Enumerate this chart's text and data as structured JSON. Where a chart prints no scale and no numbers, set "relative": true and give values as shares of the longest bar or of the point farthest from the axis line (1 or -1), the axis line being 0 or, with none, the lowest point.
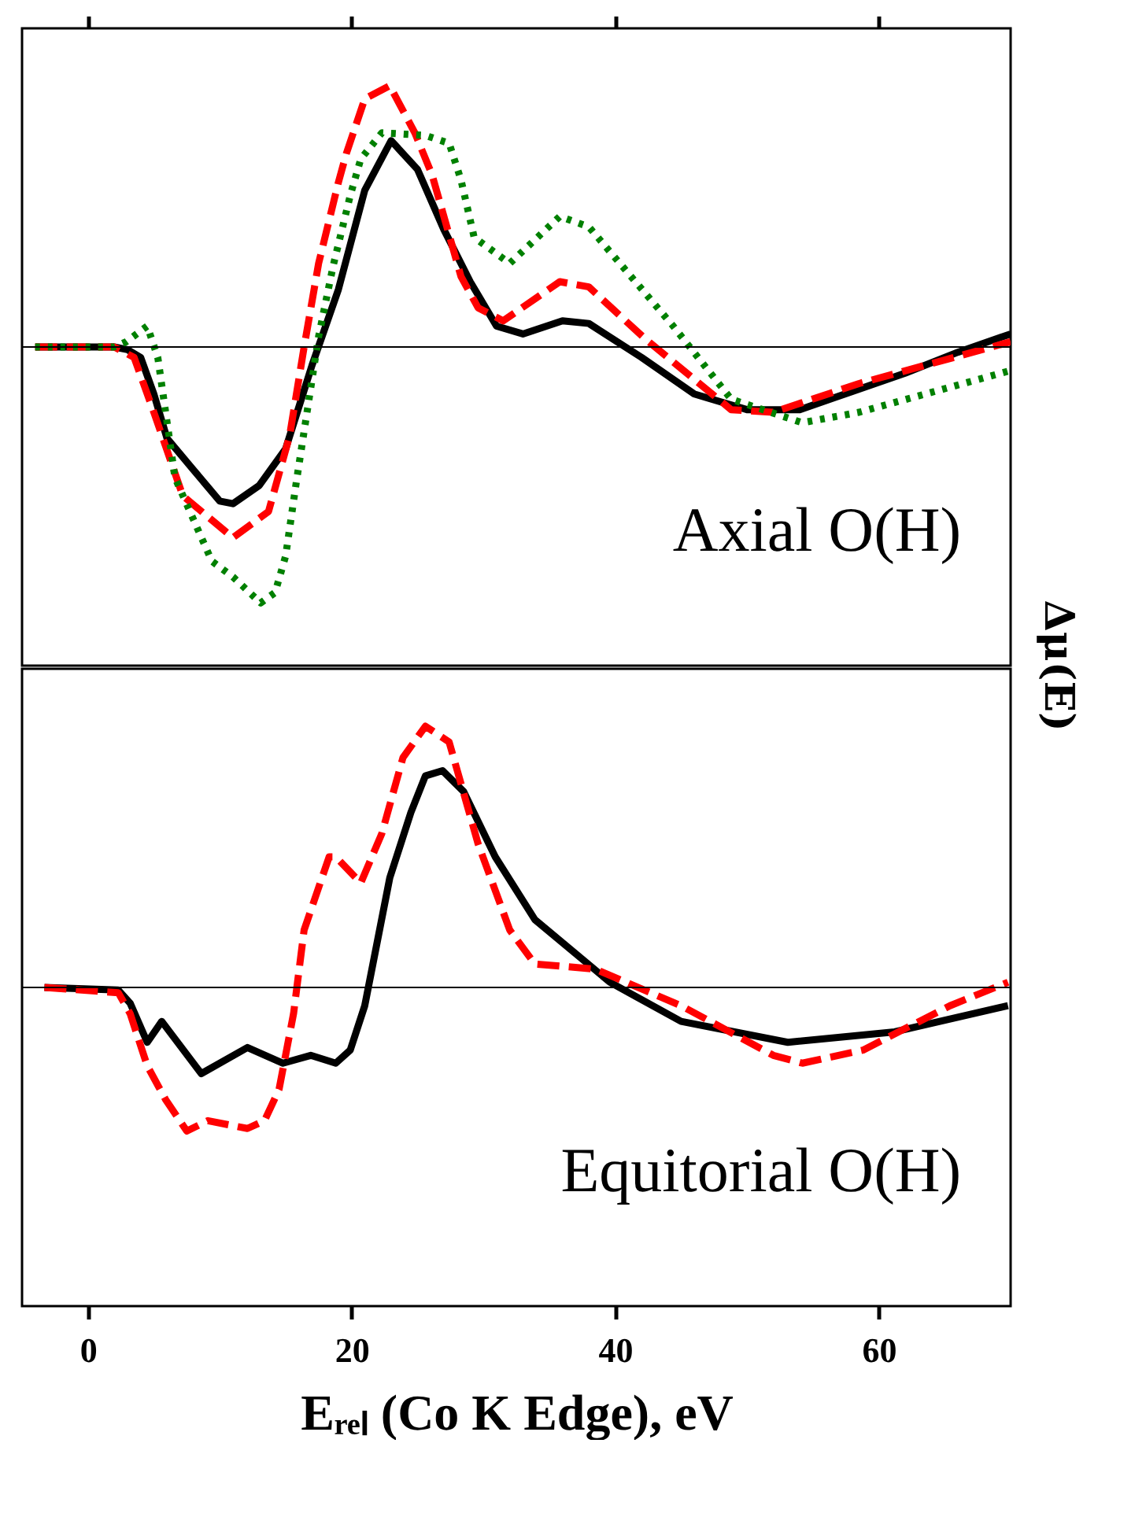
{
  "chart_data": [
    {
      "type": "line",
      "relative": true,
      "ylabel": "Δμ(E)",
      "xlim": [
        -5,
        70
      ],
      "xticks": [
        0,
        20,
        40,
        60
      ],
      "tick_labels": false,
      "annotations": [
        "Axial O(H)"
      ],
      "series": [
        {
          "color": "#000000",
          "line_style": "solid",
          "x": [
            -4,
            2,
            3,
            4,
            5,
            6,
            8,
            10,
            11,
            13,
            15,
            17,
            19,
            21,
            23,
            25,
            27,
            29,
            31,
            33,
            36,
            38,
            42,
            46,
            50,
            54,
            58,
            62,
            66,
            70
          ],
          "values": [
            0,
            0,
            -0.01,
            -0.04,
            -0.18,
            -0.35,
            -0.47,
            -0.59,
            -0.6,
            -0.53,
            -0.39,
            -0.07,
            0.22,
            0.6,
            0.79,
            0.68,
            0.45,
            0.25,
            0.08,
            0.05,
            0.1,
            0.09,
            -0.04,
            -0.18,
            -0.24,
            -0.24,
            -0.17,
            -0.1,
            -0.02,
            0.05
          ]
        },
        {
          "color": "#ff0000",
          "line_style": "dashed",
          "x": [
            -4,
            2,
            3.5,
            5,
            7.2,
            11,
            13.7,
            15.3,
            16.4,
            17.5,
            19,
            19.6,
            21,
            22.9,
            24.8,
            26.1,
            28.3,
            29.6,
            31.5,
            35.8,
            38,
            42.3,
            48.8,
            52,
            58.5,
            70
          ],
          "values": [
            0,
            0,
            -0.04,
            -0.25,
            -0.57,
            -0.73,
            -0.63,
            -0.34,
            0,
            0.32,
            0.63,
            0.74,
            0.95,
            1.0,
            0.82,
            0.66,
            0.27,
            0.15,
            0.1,
            0.25,
            0.23,
            0.03,
            -0.24,
            -0.25,
            -0.14,
            0.02
          ]
        },
        {
          "color": "#008000",
          "line_style": "dotted",
          "x": [
            -4,
            2,
            2.9,
            4.5,
            5.3,
            6.6,
            9.4,
            11,
            13.1,
            14.2,
            15,
            15.8,
            17.5,
            18.6,
            19.9,
            20.7,
            22.3,
            25.6,
            27.4,
            28.3,
            29.3,
            32,
            35.8,
            38,
            44.4,
            48.8,
            54.2,
            58.5,
            70
          ],
          "values": [
            0,
            0,
            0.02,
            0.08,
            -0.04,
            -0.5,
            -0.82,
            -0.88,
            -0.98,
            -0.94,
            -0.8,
            -0.52,
            0.04,
            0.31,
            0.58,
            0.72,
            0.82,
            0.81,
            0.78,
            0.64,
            0.42,
            0.32,
            0.5,
            0.46,
            0.08,
            -0.2,
            -0.29,
            -0.25,
            -0.09
          ]
        }
      ]
    },
    {
      "type": "line",
      "relative": true,
      "xlabel": "Eᵣₑₗ (Co K Edge), eV",
      "xlim": [
        -5,
        70
      ],
      "xticks": [
        0,
        20,
        40,
        60
      ],
      "tick_labels": "x",
      "annotations": [
        "Equitorial O(H)"
      ],
      "series": [
        {
          "color": "#000000",
          "line_style": "solid",
          "x": [
            -3.3,
            2.3,
            3.2,
            4.5,
            5.6,
            8.6,
            12.1,
            14.8,
            16.9,
            18.8,
            19.9,
            21,
            22.9,
            24.5,
            25.6,
            26.9,
            28.5,
            30.9,
            33.9,
            39.6,
            45,
            53.1,
            61.2,
            69.8
          ],
          "values": [
            0,
            -0.01,
            -0.06,
            -0.21,
            -0.13,
            -0.33,
            -0.23,
            -0.29,
            -0.26,
            -0.29,
            -0.24,
            -0.07,
            0.42,
            0.67,
            0.81,
            0.83,
            0.75,
            0.5,
            0.26,
            0.02,
            -0.13,
            -0.21,
            -0.17,
            -0.07
          ]
        },
        {
          "color": "#ff0000",
          "line_style": "dashed",
          "x": [
            -3.3,
            2.3,
            3.2,
            4.5,
            5.9,
            7.5,
            9.1,
            12.1,
            13.4,
            14.5,
            15.6,
            16.4,
            18.3,
            18.8,
            20.7,
            22.3,
            23.9,
            25.6,
            27.4,
            29.6,
            32,
            33.9,
            38.5,
            45,
            52,
            54.2,
            58.8,
            65.4,
            69.8
          ],
          "values": [
            0,
            -0.02,
            -0.1,
            -0.3,
            -0.43,
            -0.55,
            -0.51,
            -0.54,
            -0.51,
            -0.39,
            -0.1,
            0.22,
            0.5,
            0.5,
            0.4,
            0.59,
            0.88,
            1.0,
            0.94,
            0.55,
            0.22,
            0.09,
            0.07,
            -0.07,
            -0.26,
            -0.29,
            -0.24,
            -0.07,
            0.02
          ]
        }
      ]
    }
  ]
}
